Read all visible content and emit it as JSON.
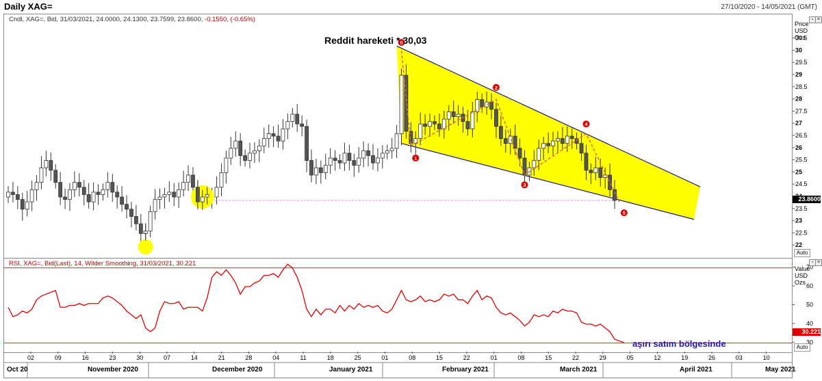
{
  "header": {
    "title": "Daily XAG=",
    "date_range": "27/10/2020 - 14/05/2021 (GMT)"
  },
  "price_panel": {
    "info": "Cndl, XAG=, Bid, 31/03/2021, 24.0000, 24.1300, 23.7599, 23.8600, ",
    "info_change": "-0.1550, (-0.65%)",
    "axis_title": [
      "Price",
      "USD",
      "Ozs"
    ],
    "last_value": "23.8600",
    "auto_label": "Auto",
    "annotation": "Reddit hareketi   * 30,03"
  },
  "rsi_panel": {
    "info": "RSI, XAG=, Bid(Last), 14, Wilder Smoothing, 31/03/2021, 30.221",
    "axis_title": [
      "Value",
      "USD",
      "Ozs"
    ],
    "last_value": "30.221",
    "auto_label": "Auto",
    "annotation": "aşırı satım bölgesinde"
  },
  "x_axis": {
    "day_ticks": [
      "02",
      "09",
      "16",
      "23",
      "30",
      "07",
      "14",
      "21",
      "28",
      "04",
      "11",
      "18",
      "25",
      "01",
      "08",
      "15",
      "22",
      "01",
      "08",
      "15",
      "22",
      "29",
      "05",
      "12",
      "19",
      "26",
      "03",
      "10"
    ],
    "months": [
      "Oct 20",
      "November 2020",
      "December 2020",
      "January 2021",
      "February 2021",
      "March 2021",
      "April 2021",
      "May 2021"
    ]
  },
  "colors": {
    "up": "#ffffff",
    "down": "#555555",
    "rsi": "#e00000",
    "wedge": "#ffff00",
    "wedge_line": "#1a1a9a",
    "annotation_blue": "#1a1ab0",
    "wave": "#e06060"
  },
  "chart_data": [
    {
      "type": "candlestick",
      "title": "Daily XAG=",
      "ylabel": "Price USD Ozs",
      "ylim": [
        21.5,
        31.5
      ],
      "y_ticks": [
        22,
        22.5,
        23,
        23.5,
        24,
        24.5,
        25,
        25.5,
        26,
        26.5,
        27,
        27.5,
        28,
        28.5,
        29,
        29.5,
        30,
        30.5,
        31
      ],
      "last_close": 23.86,
      "close_series": [
        24.2,
        24.1,
        23.9,
        23.5,
        23.8,
        24.3,
        24.6,
        25.2,
        25.5,
        25.1,
        24.6,
        24.0,
        23.9,
        24.3,
        24.6,
        24.4,
        24.1,
        23.8,
        24.2,
        24.1,
        24.3,
        24.6,
        24.2,
        24.0,
        23.7,
        23.5,
        23.2,
        22.9,
        22.5,
        22.6,
        23.4,
        23.9,
        24.0,
        24.1,
        24.2,
        24.0,
        24.3,
        24.6,
        24.9,
        24.4,
        23.8,
        24.0,
        24.1,
        24.0,
        24.4,
        25.0,
        25.6,
        26.0,
        26.3,
        25.7,
        25.5,
        25.8,
        25.9,
        26.1,
        26.4,
        26.6,
        26.5,
        26.3,
        26.8,
        27.1,
        27.4,
        27.0,
        26.9,
        25.5,
        24.9,
        25.2,
        25.0,
        25.3,
        25.6,
        25.5,
        25.4,
        25.8,
        25.5,
        25.3,
        25.6,
        25.9,
        25.7,
        25.4,
        25.6,
        25.8,
        25.9,
        26.0,
        26.6,
        29.0,
        26.7,
        26.2,
        26.4,
        27.0,
        26.9,
        27.1,
        27.0,
        26.8,
        27.2,
        27.5,
        27.3,
        27.4,
        27.1,
        26.8,
        27.5,
        28.0,
        27.7,
        27.9,
        27.6,
        26.9,
        26.4,
        26.2,
        26.5,
        26.0,
        25.6,
        24.9,
        25.2,
        25.5,
        26.0,
        26.2,
        26.1,
        26.3,
        26.4,
        26.2,
        26.5,
        26.4,
        26.2,
        25.8,
        25.1,
        25.0,
        25.2,
        24.8,
        24.9,
        24.3,
        23.86
      ],
      "levels": {
        "oversold_line_price": 23.86
      }
    },
    {
      "type": "line",
      "title": "RSI, XAG=, Bid(Last), 14, Wilder Smoothing",
      "ylim": [
        25,
        75
      ],
      "y_ticks": [
        30,
        40,
        50,
        60,
        70
      ],
      "thresholds": [
        30,
        70
      ],
      "last_value": 30.221,
      "series": [
        {
          "name": "RSI",
          "values": [
            49,
            44,
            45,
            47,
            46,
            48,
            53,
            55,
            56,
            57,
            58,
            49,
            49,
            50,
            50,
            51,
            50,
            51,
            51,
            51,
            54,
            55,
            54,
            52,
            50,
            47,
            45,
            43,
            45,
            38,
            36,
            38,
            47,
            52,
            51,
            51,
            52,
            48,
            49,
            49,
            49,
            47,
            54,
            65,
            68,
            66,
            69,
            66,
            62,
            56,
            60,
            60,
            62,
            63,
            66,
            66,
            67,
            65,
            69,
            72,
            70,
            65,
            58,
            48,
            44,
            48,
            45,
            48,
            48,
            46,
            50,
            47,
            50,
            48,
            51,
            49,
            50,
            49,
            50,
            47,
            46,
            48,
            53,
            58,
            53,
            52,
            53,
            55,
            52,
            53,
            52,
            53,
            56,
            55,
            56,
            53,
            53,
            51,
            55,
            58,
            53,
            55,
            54,
            49,
            46,
            45,
            46,
            44,
            42,
            39,
            41,
            45,
            44,
            45,
            44,
            47,
            46,
            48,
            47,
            47,
            46,
            41,
            40,
            40,
            39,
            40,
            38,
            36,
            32,
            31,
            30.221
          ]
        }
      ]
    }
  ]
}
